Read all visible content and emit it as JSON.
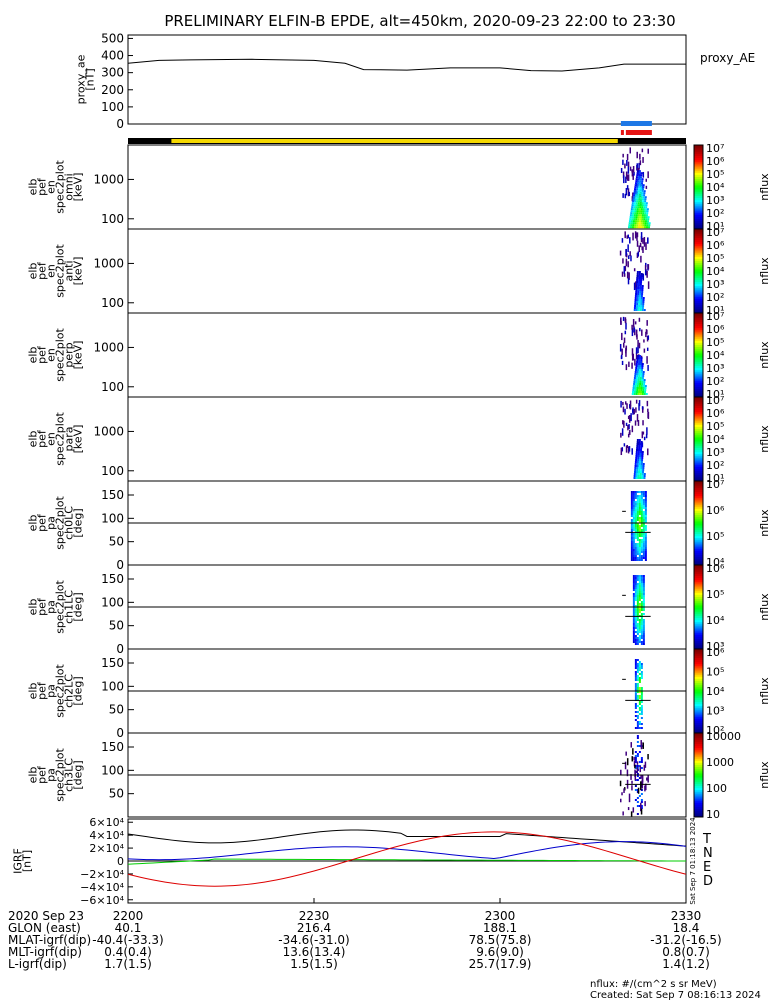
{
  "title": "PRELIMINARY ELFIN-B EPDE, alt=450km, 2020-09-23 22:00 to 23:30",
  "proxy_ae": {
    "ylabel": "proxy_ae\n[nT]",
    "legend": "proxy_AE",
    "yticks": [
      "0",
      "100",
      "200",
      "300",
      "400",
      "500"
    ],
    "ylim": [
      0,
      520
    ],
    "points": [
      [
        0,
        355
      ],
      [
        5,
        372
      ],
      [
        10,
        375
      ],
      [
        20,
        378
      ],
      [
        30,
        372
      ],
      [
        35,
        355
      ],
      [
        38,
        318
      ],
      [
        45,
        315
      ],
      [
        52,
        328
      ],
      [
        60,
        328
      ],
      [
        65,
        312
      ],
      [
        70,
        310
      ],
      [
        76,
        328
      ],
      [
        80,
        350
      ],
      [
        90,
        350
      ]
    ]
  },
  "spec_panels": [
    {
      "ylabel": "elb\npef\nen\nspec2plot\nomni\n[keV]",
      "yticks": [
        "100",
        "1000"
      ],
      "cbar_label": "nflux",
      "cbar_ticks": [
        "10¹",
        "10²",
        "10³",
        "10⁴",
        "10⁵",
        "10⁶",
        "10⁷"
      ],
      "kind": "energy"
    },
    {
      "ylabel": "elb\npef\nen\nspec2plot\nanti\n[keV]",
      "yticks": [
        "100",
        "1000"
      ],
      "cbar_label": "nflux",
      "cbar_ticks": [
        "10¹",
        "10²",
        "10³",
        "10⁴",
        "10⁵",
        "10⁶",
        "10⁷"
      ],
      "kind": "energy"
    },
    {
      "ylabel": "elb\npef\nen\nspec2plot\nperp\n[keV]",
      "yticks": [
        "100",
        "1000"
      ],
      "cbar_label": "nflux",
      "cbar_ticks": [
        "10¹",
        "10²",
        "10³",
        "10⁴",
        "10⁵",
        "10⁶",
        "10⁷"
      ],
      "kind": "energy"
    },
    {
      "ylabel": "elb\npef\nen\nspec2plot\npara\n[keV]",
      "yticks": [
        "100",
        "1000"
      ],
      "cbar_label": "nflux",
      "cbar_ticks": [
        "10¹",
        "10²",
        "10³",
        "10⁴",
        "10⁵",
        "10⁶",
        "10⁷"
      ],
      "kind": "energy"
    },
    {
      "ylabel": "elb\npef\npa\nspec2plot\nch0LC\n[deg]",
      "yticks": [
        "0",
        "50",
        "100",
        "150"
      ],
      "cbar_label": "nflux",
      "cbar_ticks": [
        "10⁴",
        "10⁵",
        "10⁶",
        "10⁷"
      ],
      "kind": "pitch"
    },
    {
      "ylabel": "elb\npef\npa\nspec2plot\nch1LC\n[deg]",
      "yticks": [
        "0",
        "50",
        "100",
        "150"
      ],
      "cbar_label": "nflux",
      "cbar_ticks": [
        "10³",
        "10⁴",
        "10⁵",
        "10⁶"
      ],
      "kind": "pitch"
    },
    {
      "ylabel": "elb\npef\npa\nspec2plot\nch2LC\n[deg]",
      "yticks": [
        "0",
        "50",
        "100",
        "150"
      ],
      "cbar_label": "nflux",
      "cbar_ticks": [
        "10²",
        "10³",
        "10⁴",
        "10⁵",
        "10⁶"
      ],
      "kind": "pitch"
    },
    {
      "ylabel": "elb\npef\npa\nspec2plot\nch3LC\n[deg]",
      "yticks": [
        "50",
        "100",
        "150"
      ],
      "cbar_label": "nflux",
      "cbar_ticks": [
        "10",
        "100",
        "1000",
        "10000"
      ],
      "kind": "pitch3"
    }
  ],
  "igrf": {
    "ylabel": "IGRF\n[nT]",
    "yticks": [
      "−6×10⁴",
      "−4×10⁴",
      "−2×10⁴",
      "0",
      "2×10⁴",
      "4×10⁴",
      "6×10⁴"
    ],
    "ylim": [
      -65000,
      65000
    ],
    "legend": [
      {
        "label": "T",
        "color": "#000000"
      },
      {
        "label": "N",
        "color": "#0000cc"
      },
      {
        "label": "E",
        "color": "#00cc00"
      },
      {
        "label": "D",
        "color": "#dd0000"
      }
    ],
    "side_note": "Sat Sep  7 01:18:13 2024"
  },
  "bottom_table": {
    "rows": [
      [
        "2020 Sep 23",
        "2200",
        "2230",
        "2300",
        "2330"
      ],
      [
        "GLON (east)",
        "40.1",
        "216.4",
        "188.1",
        "18.4"
      ],
      [
        "MLAT-igrf(dip)",
        "-40.4(-33.3)",
        "-34.6(-31.0)",
        "78.5(75.8)",
        "-31.2(-16.5)"
      ],
      [
        "MLT-igrf(dip)",
        "0.4(0.4)",
        "13.6(13.4)",
        "9.6(9.0)",
        "0.8(0.7)"
      ],
      [
        "L-igrf(dip)",
        "1.7(1.5)",
        "1.5(1.5)",
        "25.7(17.9)",
        "1.4(1.2)"
      ]
    ]
  },
  "footer": {
    "units": "nflux: #/(cm^2 s sr MeV)",
    "created": "Created: Sat Sep  7 08:16:13 2024"
  },
  "colors": {
    "yellow_bar": "#f5d800",
    "black_bar": "#000000",
    "blue_marker": "#1e78e6",
    "red_marker": "#e61414"
  }
}
